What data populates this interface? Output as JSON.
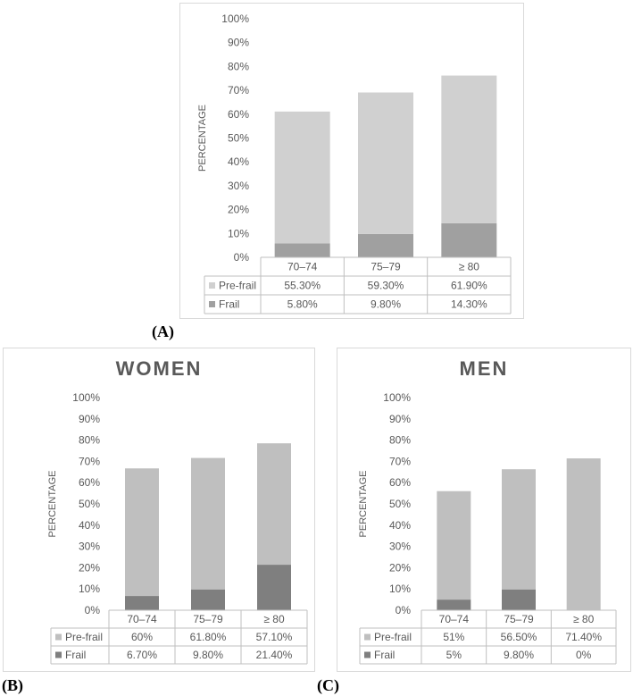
{
  "panels": [
    {
      "label": "(A)",
      "title": "",
      "chart_data": {
        "type": "bar",
        "stacked": true,
        "ylabel": "PERCENTAGE",
        "ylim": [
          0,
          100
        ],
        "yticks": [
          "0%",
          "10%",
          "20%",
          "30%",
          "40%",
          "50%",
          "60%",
          "70%",
          "80%",
          "90%",
          "100%"
        ],
        "categories": [
          "70–74",
          "75–79",
          "≥ 80"
        ],
        "series": [
          {
            "name": "Pre-frail",
            "values": [
              55.3,
              59.3,
              61.9
            ],
            "labels": [
              "55.30%",
              "59.30%",
              "61.90%"
            ],
            "color": "#d0d0d0"
          },
          {
            "name": "Frail",
            "values": [
              5.8,
              9.8,
              14.3
            ],
            "labels": [
              "5.80%",
              "9.80%",
              "14.30%"
            ],
            "color": "#a0a0a0"
          }
        ],
        "data_table": true,
        "grid": false
      }
    },
    {
      "label": "(B)",
      "title": "WOMEN",
      "chart_data": {
        "type": "bar",
        "stacked": true,
        "ylabel": "PERCENTAGE",
        "ylim": [
          0,
          100
        ],
        "yticks": [
          "0%",
          "10%",
          "20%",
          "30%",
          "40%",
          "50%",
          "60%",
          "70%",
          "80%",
          "90%",
          "100%"
        ],
        "categories": [
          "70–74",
          "75–79",
          "≥ 80"
        ],
        "series": [
          {
            "name": "Pre-frail",
            "values": [
              60,
              61.8,
              57.1
            ],
            "labels": [
              "60%",
              "61.80%",
              "57.10%"
            ],
            "color": "#bfbfbf"
          },
          {
            "name": "Frail",
            "values": [
              6.7,
              9.8,
              21.4
            ],
            "labels": [
              "6.70%",
              "9.80%",
              "21.40%"
            ],
            "color": "#7f7f7f"
          }
        ],
        "data_table": true,
        "grid": false
      }
    },
    {
      "label": "(C)",
      "title": "MEN",
      "chart_data": {
        "type": "bar",
        "stacked": true,
        "ylabel": "PERCENTAGE",
        "ylim": [
          0,
          100
        ],
        "yticks": [
          "0%",
          "10%",
          "20%",
          "30%",
          "40%",
          "50%",
          "60%",
          "70%",
          "80%",
          "90%",
          "100%"
        ],
        "categories": [
          "70–74",
          "75–79",
          "≥ 80"
        ],
        "series": [
          {
            "name": "Pre-frail",
            "values": [
              51,
              56.5,
              71.4
            ],
            "labels": [
              "51%",
              "56.50%",
              "71.40%"
            ],
            "color": "#bfbfbf"
          },
          {
            "name": "Frail",
            "values": [
              5,
              9.8,
              0
            ],
            "labels": [
              "5%",
              "9.80%",
              "0%"
            ],
            "color": "#7f7f7f"
          }
        ],
        "data_table": true,
        "grid": false
      }
    }
  ]
}
